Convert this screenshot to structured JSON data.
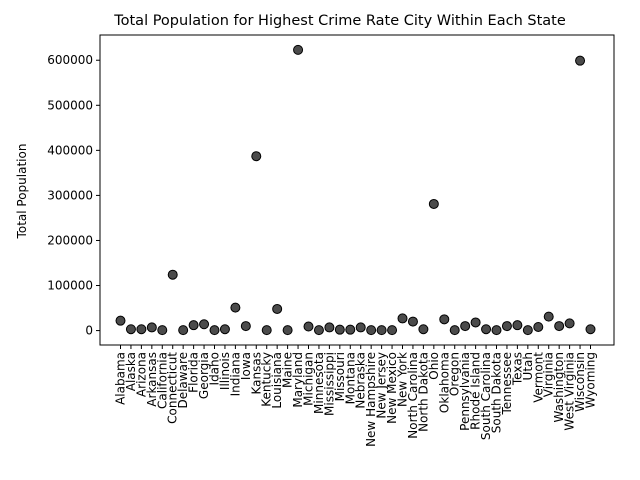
{
  "chart_data": {
    "type": "scatter",
    "title": "Total Population for Highest Crime Rate City Within Each State",
    "xlabel": "",
    "ylabel": "Total Population",
    "ylim": [
      -32000,
      656000
    ],
    "yticks": [
      0,
      100000,
      200000,
      300000,
      400000,
      500000,
      600000
    ],
    "grid": false,
    "categories": [
      "Alabama",
      "Alaska",
      "Arizona",
      "Arkansas",
      "California",
      "Connecticut",
      "Delaware",
      "Florida",
      "Georgia",
      "Idaho",
      "Illinois",
      "Indiana",
      "Iowa",
      "Kansas",
      "Kentucky",
      "Louisiana",
      "Maine",
      "Maryland",
      "Michigan",
      "Minnesota",
      "Mississippi",
      "Missouri",
      "Montana",
      "Nebraska",
      "New Hampshire",
      "New Jersey",
      "New Mexico",
      "New York",
      "North Carolina",
      "North Dakota",
      "Ohio",
      "Oklahoma",
      "Oregon",
      "Pennsylvania",
      "Rhode Island",
      "South Carolina",
      "South Dakota",
      "Tennessee",
      "Texas",
      "Utah",
      "Vermont",
      "Virginia",
      "Washington",
      "West Virginia",
      "Wisconsin",
      "Wyoming"
    ],
    "values": [
      22000,
      3000,
      3000,
      7000,
      1000,
      124000,
      1000,
      12000,
      14000,
      1000,
      3000,
      51000,
      10000,
      387000,
      1000,
      48000,
      1000,
      623000,
      9000,
      1000,
      7000,
      2000,
      2000,
      7000,
      1000,
      1000,
      1000,
      27000,
      20000,
      3000,
      281000,
      25000,
      1000,
      10000,
      18000,
      3000,
      1000,
      10000,
      12000,
      1000,
      8000,
      31000,
      10000,
      16000,
      599000,
      3000
    ]
  }
}
